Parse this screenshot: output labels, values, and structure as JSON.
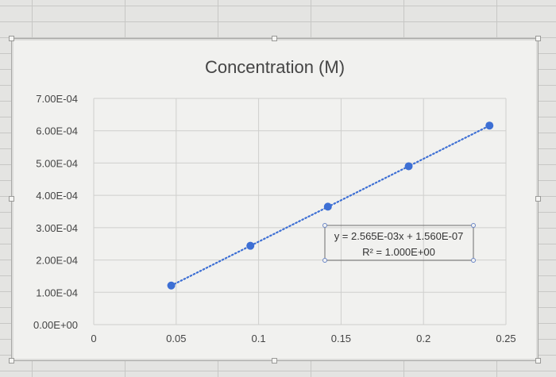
{
  "chart_data": {
    "type": "scatter",
    "title": "Concentration (M)",
    "xlabel": "",
    "ylabel": "",
    "xlim": [
      0,
      0.25
    ],
    "ylim": [
      0,
      0.0007
    ],
    "x_ticks": [
      0,
      0.05,
      0.1,
      0.15,
      0.2,
      0.25
    ],
    "x_tick_labels": [
      "0",
      "0.05",
      "0.1",
      "0.15",
      "0.2",
      "0.25"
    ],
    "y_ticks": [
      0,
      0.0001,
      0.0002,
      0.0003,
      0.0004,
      0.0005,
      0.0006,
      0.0007
    ],
    "y_tick_labels": [
      "0.00E+00",
      "1.00E-04",
      "2.00E-04",
      "3.00E-04",
      "4.00E-04",
      "5.00E-04",
      "6.00E-04",
      "7.00E-04"
    ],
    "grid": true,
    "series": [
      {
        "points": [
          {
            "x": 0.047,
            "y": 0.000121
          },
          {
            "x": 0.095,
            "y": 0.000244
          },
          {
            "x": 0.142,
            "y": 0.000365
          },
          {
            "x": 0.191,
            "y": 0.00049
          },
          {
            "x": 0.24,
            "y": 0.000616
          }
        ],
        "color": "#3d6fd4"
      }
    ],
    "trendline": {
      "type": "linear",
      "style": "dotted",
      "slope": 0.002565,
      "intercept": 1.56e-07,
      "equation": "y = 2.565E-03x + 1.560E-07",
      "r_squared": "R² = 1.000E+00"
    }
  }
}
